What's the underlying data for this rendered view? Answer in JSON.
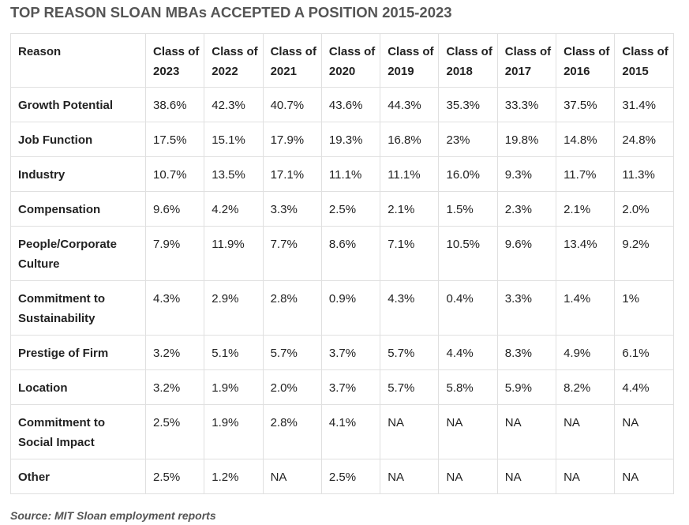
{
  "header": {
    "title": "TOP REASON SLOAN MBAs ACCEPTED A POSITION 2015-2023"
  },
  "table": {
    "headers": [
      "Reason",
      "Class of 2023",
      "Class of 2022",
      "Class of 2021",
      "Class of 2020",
      "Class of 2019",
      "Class of 2018",
      "Class of 2017",
      "Class of 2016",
      "Class of 2015"
    ],
    "rows": [
      [
        "Growth Potential",
        "38.6%",
        "42.3%",
        "40.7%",
        "43.6%",
        "44.3%",
        "35.3%",
        "33.3%",
        "37.5%",
        "31.4%"
      ],
      [
        "Job Function",
        "17.5%",
        "15.1%",
        "17.9%",
        "19.3%",
        "16.8%",
        "23%",
        "19.8%",
        "14.8%",
        "24.8%"
      ],
      [
        "Industry",
        "10.7%",
        "13.5%",
        "17.1%",
        "11.1%",
        "11.1%",
        "16.0%",
        "9.3%",
        "11.7%",
        "11.3%"
      ],
      [
        "Compensation",
        "9.6%",
        "4.2%",
        "3.3%",
        "2.5%",
        "2.1%",
        "1.5%",
        "2.3%",
        "2.1%",
        "2.0%"
      ],
      [
        "People/Corporate Culture",
        "7.9%",
        "11.9%",
        "7.7%",
        "8.6%",
        "7.1%",
        "10.5%",
        "9.6%",
        "13.4%",
        "9.2%"
      ],
      [
        "Commitment to Sustainability",
        "4.3%",
        "2.9%",
        "2.8%",
        "0.9%",
        "4.3%",
        "0.4%",
        "3.3%",
        "1.4%",
        "1%"
      ],
      [
        "Prestige of Firm",
        "3.2%",
        "5.1%",
        "5.7%",
        "3.7%",
        "5.7%",
        "4.4%",
        "8.3%",
        "4.9%",
        "6.1%"
      ],
      [
        "Location",
        "3.2%",
        "1.9%",
        "2.0%",
        "3.7%",
        "5.7%",
        "5.8%",
        "5.9%",
        "8.2%",
        "4.4%"
      ],
      [
        "Commitment to Social Impact",
        "2.5%",
        "1.9%",
        "2.8%",
        "4.1%",
        "NA",
        "NA",
        "NA",
        "NA",
        "NA"
      ],
      [
        "Other",
        "2.5%",
        "1.2%",
        "NA",
        "2.5%",
        "NA",
        "NA",
        "NA",
        "NA",
        "NA"
      ]
    ]
  },
  "footer": {
    "source": "Source: MIT Sloan employment reports"
  }
}
